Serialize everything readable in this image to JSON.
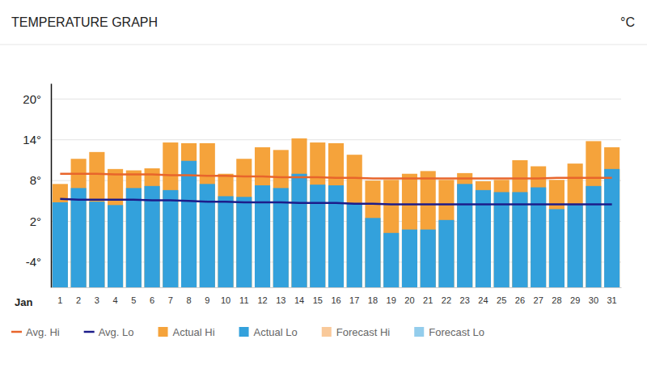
{
  "chart_data": {
    "type": "bar",
    "title": "TEMPERATURE GRAPH",
    "ylabel": "°C",
    "xlabel": "Jan",
    "categories": [
      "1",
      "2",
      "3",
      "4",
      "5",
      "6",
      "7",
      "8",
      "9",
      "10",
      "11",
      "12",
      "13",
      "14",
      "15",
      "16",
      "17",
      "18",
      "19",
      "20",
      "21",
      "22",
      "23",
      "24",
      "25",
      "26",
      "27",
      "28",
      "29",
      "30",
      "31"
    ],
    "ylim": [
      -7.7,
      22.3
    ],
    "yticks": [
      {
        "value": 20,
        "label": "20°"
      },
      {
        "value": 14,
        "label": "14°"
      },
      {
        "value": 8,
        "label": "8°"
      },
      {
        "value": 2,
        "label": "2°"
      },
      {
        "value": -4,
        "label": "-4°"
      }
    ],
    "grid": true,
    "legend": "bottom",
    "series": [
      {
        "name": "Avg. Hi",
        "type": "line",
        "color": "#e8652b",
        "values": [
          9.0,
          9.0,
          9.0,
          8.9,
          8.9,
          8.9,
          8.8,
          8.8,
          8.7,
          8.7,
          8.6,
          8.6,
          8.5,
          8.5,
          8.5,
          8.4,
          8.4,
          8.3,
          8.3,
          8.3,
          8.3,
          8.3,
          8.3,
          8.3,
          8.3,
          8.3,
          8.3,
          8.4,
          8.4,
          8.4,
          8.4
        ]
      },
      {
        "name": "Avg. Lo",
        "type": "line",
        "color": "#1c1c8a",
        "values": [
          5.3,
          5.2,
          5.2,
          5.2,
          5.2,
          5.1,
          5.1,
          5.0,
          4.9,
          4.9,
          4.8,
          4.8,
          4.8,
          4.7,
          4.7,
          4.7,
          4.6,
          4.6,
          4.5,
          4.5,
          4.5,
          4.5,
          4.5,
          4.5,
          4.5,
          4.5,
          4.5,
          4.5,
          4.5,
          4.5,
          4.5
        ]
      },
      {
        "name": "Actual Hi",
        "type": "bar",
        "color": "#f5a33b",
        "values": [
          7.5,
          11.2,
          12.2,
          9.7,
          9.5,
          9.8,
          13.6,
          13.5,
          13.5,
          9.0,
          11.2,
          12.9,
          12.5,
          14.2,
          13.6,
          13.5,
          11.8,
          8.0,
          8.1,
          9.0,
          9.4,
          8.1,
          9.1,
          7.9,
          8.1,
          11.0,
          10.1,
          8.1,
          10.5,
          13.8,
          12.9
        ]
      },
      {
        "name": "Actual Lo",
        "type": "bar",
        "color": "#33a1dc",
        "values": [
          4.8,
          6.9,
          4.9,
          4.4,
          6.9,
          7.2,
          6.6,
          10.9,
          7.5,
          5.7,
          5.6,
          7.3,
          6.9,
          9.0,
          7.4,
          7.3,
          4.7,
          2.5,
          0.3,
          0.8,
          0.8,
          2.2,
          7.5,
          6.6,
          6.3,
          6.3,
          7.0,
          3.8,
          4.4,
          7.2,
          9.7
        ]
      },
      {
        "name": "Forecast Hi",
        "type": "bar",
        "color": "#f9c99a",
        "values": [
          null,
          null,
          null,
          null,
          null,
          null,
          null,
          null,
          null,
          null,
          null,
          null,
          null,
          null,
          null,
          null,
          null,
          null,
          null,
          null,
          null,
          null,
          null,
          null,
          null,
          null,
          null,
          null,
          null,
          null,
          null
        ]
      },
      {
        "name": "Forecast Lo",
        "type": "bar",
        "color": "#93cdec",
        "values": [
          null,
          null,
          null,
          null,
          null,
          null,
          null,
          null,
          null,
          null,
          null,
          null,
          null,
          null,
          null,
          null,
          null,
          null,
          null,
          null,
          null,
          null,
          null,
          null,
          null,
          null,
          null,
          null,
          null,
          null,
          null
        ]
      }
    ]
  }
}
